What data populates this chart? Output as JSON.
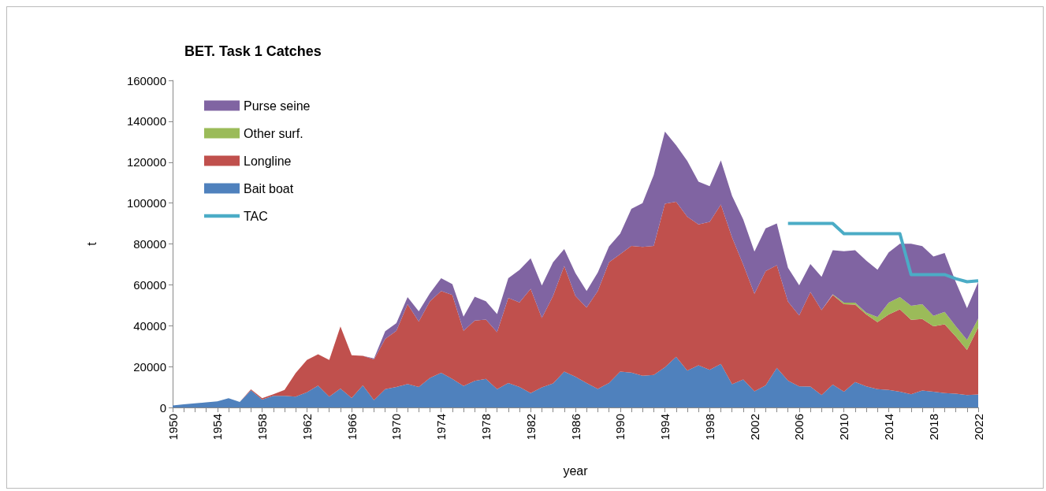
{
  "chart_data": {
    "type": "area",
    "title": "BET. Task 1 Catches",
    "xlabel": "year",
    "ylabel": "t",
    "stacked": true,
    "legend": "top left",
    "grid": false,
    "categories": [
      "1950",
      null,
      null,
      null,
      "1954",
      null,
      null,
      null,
      "1958",
      null,
      null,
      null,
      "1962",
      null,
      null,
      null,
      "1966",
      null,
      null,
      null,
      "1970",
      null,
      null,
      null,
      "1974",
      null,
      null,
      null,
      "1978",
      null,
      null,
      null,
      "1982",
      null,
      null,
      null,
      "1986",
      null,
      null,
      null,
      "1990",
      null,
      null,
      null,
      "1994",
      null,
      null,
      null,
      "1998",
      null,
      null,
      null,
      "2002",
      null,
      null,
      null,
      "2006",
      null,
      null,
      null,
      "2010",
      null,
      null,
      null,
      "2014",
      null,
      null,
      null,
      "2018",
      null,
      null,
      null,
      "2022"
    ],
    "ylim": [
      0,
      160000
    ],
    "yticks": [
      0,
      20000,
      40000,
      60000,
      80000,
      100000,
      120000,
      140000,
      160000
    ],
    "series": [
      {
        "name": "Bait boat",
        "color": "#4f81bd",
        "values": [
          1000,
          1500,
          2000,
          2500,
          3000,
          4500,
          2700,
          8400,
          3900,
          5700,
          5700,
          5300,
          7400,
          10700,
          5300,
          9300,
          4600,
          10800,
          3600,
          9000,
          10000,
          11500,
          10000,
          14500,
          17000,
          14000,
          10500,
          13000,
          14000,
          9000,
          12000,
          10000,
          7000,
          9800,
          11800,
          17500,
          15000,
          12000,
          9100,
          12000,
          17500,
          17100,
          15500,
          15900,
          19700,
          24800,
          18000,
          20600,
          18400,
          21300,
          11400,
          13700,
          7900,
          10800,
          19400,
          13100,
          10300,
          10200,
          6100,
          11200,
          7700,
          12400,
          10300,
          9000,
          8600,
          7700,
          6500,
          8300,
          7700,
          7000,
          6700,
          6100,
          6400
        ]
      },
      {
        "name": "Longline",
        "color": "#c0504d",
        "values": [
          0,
          0,
          0,
          0,
          0,
          0,
          0,
          500,
          600,
          800,
          2900,
          11600,
          15800,
          15300,
          17900,
          30300,
          20900,
          14500,
          19900,
          24500,
          27500,
          39000,
          32000,
          37500,
          40000,
          41000,
          27000,
          29500,
          29000,
          27800,
          41600,
          41400,
          51000,
          34000,
          42800,
          51700,
          39600,
          36900,
          47900,
          59000,
          57500,
          61900,
          63100,
          63100,
          80000,
          75800,
          75300,
          68900,
          72400,
          78000,
          71800,
          56200,
          47700,
          55900,
          50200,
          38700,
          34700,
          46300,
          41500,
          43800,
          42800,
          37900,
          35200,
          32700,
          36900,
          40300,
          36400,
          35000,
          32000,
          33700,
          28000,
          22000,
          32700
        ]
      },
      {
        "name": "Other surf.",
        "color": "#9bbb59",
        "values": [
          null,
          null,
          null,
          null,
          null,
          null,
          null,
          null,
          null,
          null,
          null,
          null,
          null,
          null,
          null,
          null,
          null,
          null,
          null,
          null,
          null,
          null,
          null,
          null,
          null,
          null,
          null,
          null,
          null,
          null,
          null,
          null,
          null,
          null,
          null,
          null,
          null,
          null,
          null,
          null,
          null,
          null,
          null,
          null,
          null,
          null,
          null,
          null,
          null,
          null,
          null,
          null,
          null,
          null,
          null,
          null,
          null,
          null,
          null,
          300,
          800,
          1000,
          900,
          2500,
          5800,
          6000,
          6800,
          7200,
          5100,
          6000,
          5000,
          5000,
          4400
        ]
      },
      {
        "name": "Purse seine",
        "color": "#8064a2",
        "values": [
          0,
          0,
          0,
          0,
          0,
          0,
          0,
          0,
          0,
          0,
          0,
          0,
          0,
          0,
          0,
          0,
          0,
          0,
          500,
          3800,
          3800,
          3500,
          5000,
          3900,
          6200,
          5300,
          6900,
          11700,
          9000,
          8900,
          9600,
          15900,
          15000,
          15900,
          16400,
          8300,
          11100,
          8100,
          9000,
          7700,
          10000,
          18200,
          21400,
          34700,
          35200,
          27700,
          27300,
          21000,
          17400,
          21600,
          20300,
          22100,
          20600,
          20900,
          20400,
          16500,
          14800,
          13700,
          16300,
          21600,
          25100,
          25600,
          25400,
          23200,
          24600,
          26100,
          30400,
          28400,
          29000,
          28900,
          21600,
          15500,
          17800
        ]
      },
      {
        "name": "TAC",
        "type": "line",
        "color": "#4bacc6",
        "values": [
          null,
          null,
          null,
          null,
          null,
          null,
          null,
          null,
          null,
          null,
          null,
          null,
          null,
          null,
          null,
          null,
          null,
          null,
          null,
          null,
          null,
          null,
          null,
          null,
          null,
          null,
          null,
          null,
          null,
          null,
          null,
          null,
          null,
          null,
          null,
          null,
          null,
          null,
          null,
          null,
          null,
          null,
          null,
          null,
          null,
          null,
          null,
          null,
          null,
          null,
          null,
          null,
          null,
          null,
          null,
          90000,
          90000,
          90000,
          90000,
          90000,
          85000,
          85000,
          85000,
          85000,
          85000,
          85000,
          65000,
          65000,
          65000,
          65000,
          63000,
          61500,
          62000
        ]
      }
    ]
  }
}
